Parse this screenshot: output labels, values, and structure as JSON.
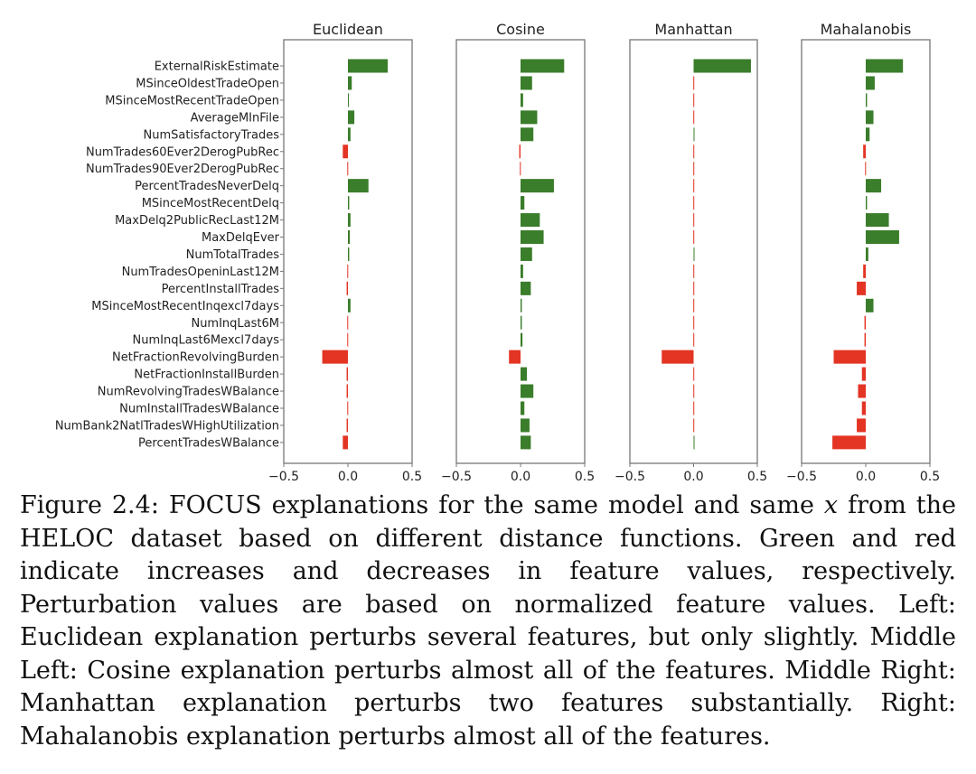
{
  "chart_data": [
    {
      "type": "bar",
      "orientation": "horizontal",
      "title": "Euclidean",
      "xlim": [
        -0.5,
        0.5
      ],
      "xticks": [
        "−0.5",
        "0.0",
        "0.5"
      ],
      "categories": [
        "ExternalRiskEstimate",
        "MSinceOldestTradeOpen",
        "MSinceMostRecentTradeOpen",
        "AverageMInFile",
        "NumSatisfactoryTrades",
        "NumTrades60Ever2DerogPubRec",
        "NumTrades90Ever2DerogPubRec",
        "PercentTradesNeverDelq",
        "MSinceMostRecentDelq",
        "MaxDelq2PublicRecLast12M",
        "MaxDelqEver",
        "NumTotalTrades",
        "NumTradesOpeninLast12M",
        "PercentInstallTrades",
        "MSinceMostRecentInqexcl7days",
        "NumInqLast6M",
        "NumInqLast6Mexcl7days",
        "NetFractionRevolvingBurden",
        "NetFractionInstallBurden",
        "NumRevolvingTradesWBalance",
        "NumInstallTradesWBalance",
        "NumBank2NatlTradesWHighUtilization",
        "PercentTradesWBalance"
      ],
      "values": [
        0.31,
        0.03,
        0.005,
        0.05,
        0.02,
        -0.04,
        -0.005,
        0.16,
        0.01,
        0.02,
        0.015,
        0.01,
        -0.005,
        -0.01,
        0.02,
        -0.005,
        -0.005,
        -0.2,
        -0.01,
        -0.01,
        -0.005,
        -0.01,
        -0.04
      ]
    },
    {
      "type": "bar",
      "orientation": "horizontal",
      "title": "Cosine",
      "xlim": [
        -0.5,
        0.5
      ],
      "xticks": [
        "−0.5",
        "0.0",
        "0.5"
      ],
      "values": [
        0.34,
        0.09,
        0.02,
        0.13,
        0.1,
        -0.01,
        -0.005,
        0.26,
        0.03,
        0.15,
        0.18,
        0.09,
        0.02,
        0.08,
        0.01,
        0.01,
        0.015,
        -0.09,
        0.05,
        0.1,
        0.03,
        0.07,
        0.08
      ]
    },
    {
      "type": "bar",
      "orientation": "horizontal",
      "title": "Manhattan",
      "xlim": [
        -0.5,
        0.5
      ],
      "xticks": [
        "−0.5",
        "0.0",
        "0.5"
      ],
      "values": [
        0.45,
        -0.002,
        -0.002,
        -0.002,
        0.002,
        -0.002,
        -0.002,
        -0.002,
        -0.002,
        -0.002,
        -0.002,
        0.002,
        -0.002,
        -0.002,
        -0.002,
        -0.002,
        -0.002,
        -0.25,
        -0.002,
        -0.002,
        -0.002,
        -0.002,
        0.002
      ]
    },
    {
      "type": "bar",
      "orientation": "horizontal",
      "title": "Mahalanobis",
      "xlim": [
        -0.5,
        0.5
      ],
      "xticks": [
        "−0.5",
        "0.0",
        "0.5"
      ],
      "values": [
        0.29,
        0.07,
        0.01,
        0.06,
        0.03,
        -0.02,
        -0.005,
        0.12,
        0.01,
        0.18,
        0.26,
        0.02,
        -0.02,
        -0.07,
        0.06,
        -0.01,
        -0.01,
        -0.25,
        -0.03,
        -0.06,
        -0.03,
        -0.07,
        -0.26
      ]
    }
  ],
  "colors": {
    "increase": "#3a7d2a",
    "decrease": "#e33424",
    "axis": "#777777"
  },
  "caption": {
    "part1": "Figure 2.4: FOCUS explanations for the same model and same ",
    "var": "x",
    "part2": " from the HELOC dataset based on different distance functions. Green and red indicate increases and decreases in feature values, respectively.  Perturbation values are based on normalized feature values. Left: Euclidean explanation perturbs several features, but only slightly. Middle Left: Cosine explanation perturbs almost all of the features. Middle Right: Manhattan explanation perturbs two features substantially. Right: Mahalanobis explanation perturbs almost all of the features."
  }
}
